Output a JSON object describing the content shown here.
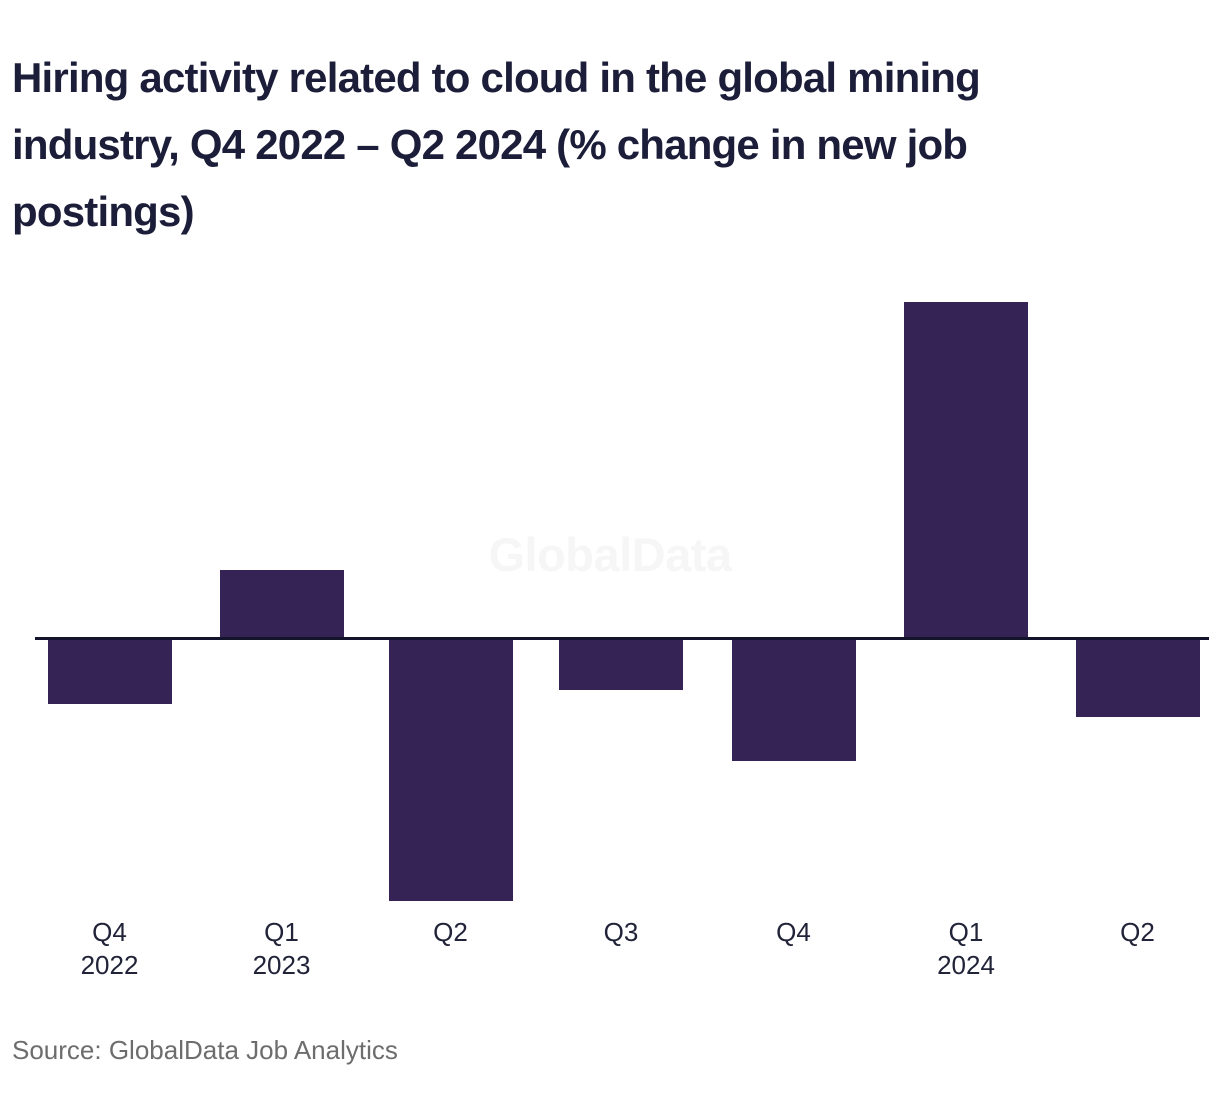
{
  "title": {
    "text": "Hiring activity related to cloud in the global mining industry, Q4 2022 – Q2 2024 (% change in new job postings)",
    "lines": [
      "Hiring activity related to cloud in the global mining",
      "industry, Q4 2022 – Q2 2024 (% change in new job",
      "postings)"
    ],
    "color": "#1b1d39"
  },
  "watermark": {
    "text": "GlobalData",
    "color": "#f6f6f6"
  },
  "source": {
    "text": "Source: GlobalData Job Analytics",
    "color": "#6d6d6d"
  },
  "chart_data": {
    "type": "bar",
    "title": "Hiring activity related to cloud in the global mining industry, Q4 2022 – Q2 2024 (% change in new job postings)",
    "ylabel": "% change in new job postings",
    "categories": [
      "Q4 2022",
      "Q1 2023",
      "Q2 2023",
      "Q3 2023",
      "Q4 2023",
      "Q1 2024",
      "Q2 2024"
    ],
    "tick_labels": [
      [
        "Q4",
        "2022"
      ],
      [
        "Q1",
        "2023"
      ],
      [
        "Q2"
      ],
      [
        "Q3"
      ],
      [
        "Q4"
      ],
      [
        "Q1",
        "2024"
      ],
      [
        "Q2"
      ]
    ],
    "values": [
      -19,
      20,
      -78,
      -15,
      -36,
      100,
      -23
    ],
    "values_note": "y-axis is unlabeled in the figure; values are estimated from bar heights, normalized so the tallest bar (Q1 2024) = 100",
    "baseline": 0,
    "ylim": [
      -80,
      100
    ],
    "grid": false,
    "legend": false,
    "bar_color": "#362355",
    "axis_color": "#13132b",
    "tick_color": "#212339",
    "background_color": "#ffffff"
  }
}
